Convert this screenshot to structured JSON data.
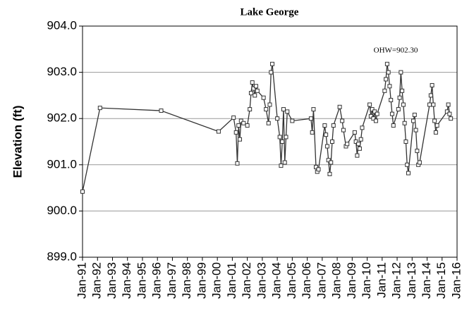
{
  "chart_data": {
    "type": "line",
    "title": "Lake George",
    "ylabel": "Elevation (ft)",
    "annotation": "OHW=902.30",
    "series": [
      {
        "color": "#333333",
        "x": [
          "1991-01",
          "1992-03",
          "1996-04",
          "2000-02",
          "2001-02",
          "2001-04",
          "2001-05",
          "2001-06",
          "2001-07",
          "2001-08",
          "2001-10",
          "2002-01",
          "2002-03",
          "2002-04",
          "2002-05",
          "2002-06",
          "2002-07",
          "2002-08",
          "2002-09",
          "2003-02",
          "2003-04",
          "2003-06",
          "2003-07",
          "2003-08",
          "2003-09",
          "2004-01",
          "2004-03",
          "2004-04",
          "2004-05",
          "2004-06",
          "2004-07",
          "2004-08",
          "2004-09",
          "2005-01",
          "2006-04",
          "2006-05",
          "2006-06",
          "2006-08",
          "2006-09",
          "2006-10",
          "2007-03",
          "2007-04",
          "2007-05",
          "2007-06",
          "2007-07",
          "2007-08",
          "2007-09",
          "2007-10",
          "2008-03",
          "2008-05",
          "2008-06",
          "2008-08",
          "2008-09",
          "2009-03",
          "2009-04",
          "2009-05",
          "2009-06",
          "2009-07",
          "2009-08",
          "2009-09",
          "2010-03",
          "2010-04",
          "2010-05",
          "2010-06",
          "2010-07",
          "2010-08",
          "2010-09",
          "2011-03",
          "2011-04",
          "2011-05",
          "2011-06",
          "2011-07",
          "2011-08",
          "2011-09",
          "2011-10",
          "2012-02",
          "2012-03",
          "2012-04",
          "2012-05",
          "2012-06",
          "2012-07",
          "2012-08",
          "2012-09",
          "2012-10",
          "2013-02",
          "2013-03",
          "2013-04",
          "2013-05",
          "2013-06",
          "2013-07",
          "2014-03",
          "2014-04",
          "2014-05",
          "2014-06",
          "2014-07",
          "2014-08",
          "2014-09",
          "2015-05",
          "2015-06",
          "2015-07",
          "2015-08"
        ],
        "values": [
          900.42,
          902.23,
          902.17,
          901.72,
          902.02,
          901.7,
          901.03,
          901.85,
          901.55,
          901.95,
          901.9,
          901.85,
          902.2,
          902.55,
          902.78,
          902.65,
          902.5,
          902.7,
          902.6,
          902.45,
          902.2,
          901.9,
          902.3,
          903.0,
          903.18,
          902.0,
          901.6,
          900.98,
          901.5,
          902.2,
          901.05,
          901.6,
          902.15,
          901.95,
          902.0,
          901.7,
          902.2,
          900.95,
          900.85,
          900.9,
          901.85,
          901.65,
          901.4,
          901.1,
          900.8,
          901.05,
          901.5,
          901.85,
          902.25,
          901.95,
          901.75,
          901.4,
          901.45,
          901.7,
          901.5,
          901.2,
          901.45,
          901.35,
          901.55,
          901.8,
          902.3,
          902.05,
          902.2,
          902.0,
          902.15,
          901.95,
          902.1,
          902.6,
          902.85,
          903.18,
          903.0,
          902.7,
          902.4,
          902.1,
          901.85,
          902.2,
          902.45,
          903.0,
          902.6,
          902.3,
          901.9,
          901.5,
          901.0,
          900.82,
          901.95,
          902.08,
          901.75,
          901.3,
          901.0,
          901.05,
          902.3,
          902.5,
          902.72,
          902.3,
          901.95,
          901.7,
          901.85,
          902.15,
          902.3,
          902.1,
          902.0
        ]
      }
    ],
    "ylim": [
      899,
      904
    ],
    "yticks": [
      {
        "value": 899,
        "label": "899.0"
      },
      {
        "value": 900,
        "label": "900.0"
      },
      {
        "value": 901,
        "label": "901.0"
      },
      {
        "value": 902,
        "label": "902.0"
      },
      {
        "value": 903,
        "label": "903.0"
      },
      {
        "value": 904,
        "label": "904.0"
      }
    ],
    "xlim": [
      "1991-01",
      "2016-01"
    ],
    "xticks": [
      {
        "value": "1991-01",
        "label": "Jan-91"
      },
      {
        "value": "1992-01",
        "label": "Jan-92"
      },
      {
        "value": "1993-01",
        "label": "Jan-93"
      },
      {
        "value": "1994-01",
        "label": "Jan-94"
      },
      {
        "value": "1995-01",
        "label": "Jan-95"
      },
      {
        "value": "1996-01",
        "label": "Jan-96"
      },
      {
        "value": "1997-01",
        "label": "Jan-97"
      },
      {
        "value": "1998-01",
        "label": "Jan-98"
      },
      {
        "value": "1999-01",
        "label": "Jan-99"
      },
      {
        "value": "2000-01",
        "label": "Jan-00"
      },
      {
        "value": "2001-01",
        "label": "Jan-01"
      },
      {
        "value": "2002-01",
        "label": "Jan-02"
      },
      {
        "value": "2003-01",
        "label": "Jan-03"
      },
      {
        "value": "2004-01",
        "label": "Jan-04"
      },
      {
        "value": "2005-01",
        "label": "Jan-05"
      },
      {
        "value": "2006-01",
        "label": "Jan-06"
      },
      {
        "value": "2007-01",
        "label": "Jan-07"
      },
      {
        "value": "2008-01",
        "label": "Jan-08"
      },
      {
        "value": "2009-01",
        "label": "Jan-09"
      },
      {
        "value": "2010-01",
        "label": "Jan-10"
      },
      {
        "value": "2011-01",
        "label": "Jan-11"
      },
      {
        "value": "2012-01",
        "label": "Jan-12"
      },
      {
        "value": "2013-01",
        "label": "Jan-13"
      },
      {
        "value": "2014-01",
        "label": "Jan-14"
      },
      {
        "value": "2015-01",
        "label": "Jan-15"
      },
      {
        "value": "2016-01",
        "label": "Jan-16"
      }
    ],
    "grid": true
  }
}
